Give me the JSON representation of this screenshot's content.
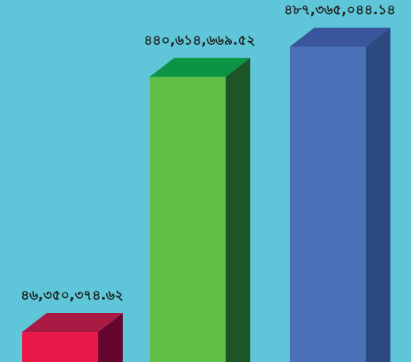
{
  "chart_data": {
    "type": "bar",
    "style": "3d-column",
    "title": "",
    "xlabel": "",
    "ylabel": "",
    "categories": [
      "",
      "",
      ""
    ],
    "values": [
      46350374.62,
      440614669.52,
      487365044.14
    ],
    "data_labels": [
      "৪৬,৩৫০,৩৭৪.৬২",
      "৪৪০,৬১৪,৬৬৯.৫২",
      "৪৮৭,৩৬৫,০৪৪.১৪"
    ],
    "colors": [
      {
        "front": "#ea1848",
        "top": "#a91a45",
        "side": "#64062f"
      },
      {
        "front": "#5fbf46",
        "top": "#0a9444",
        "side": "#1d5428"
      },
      {
        "front": "#4a70b8",
        "top": "#3a559c",
        "side": "#2c4980"
      }
    ],
    "background": "#5ec6d8",
    "grid": false,
    "legend": "none"
  }
}
